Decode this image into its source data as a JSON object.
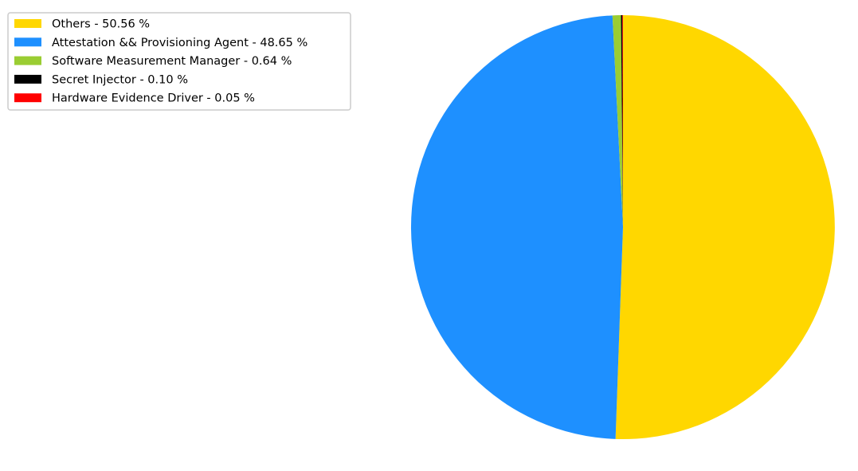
{
  "chart_data": {
    "type": "pie",
    "title": "",
    "slices": [
      {
        "label": "Others - 50.56 %",
        "value": 50.56,
        "color": "#FFD700"
      },
      {
        "label": "Attestation && Provisioning Agent - 48.65 %",
        "value": 48.65,
        "color": "#1E90FF"
      },
      {
        "label": "Software Measurement Manager - 0.64 %",
        "value": 0.64,
        "color": "#9ACD32"
      },
      {
        "label": "Secret Injector - 0.10 %",
        "value": 0.1,
        "color": "#000000"
      },
      {
        "label": "Hardware Evidence Driver - 0.05 %",
        "value": 0.05,
        "color": "#FF0000"
      }
    ],
    "start_angle_deg": 90,
    "direction": "clockwise",
    "legend_position": "top-left"
  }
}
